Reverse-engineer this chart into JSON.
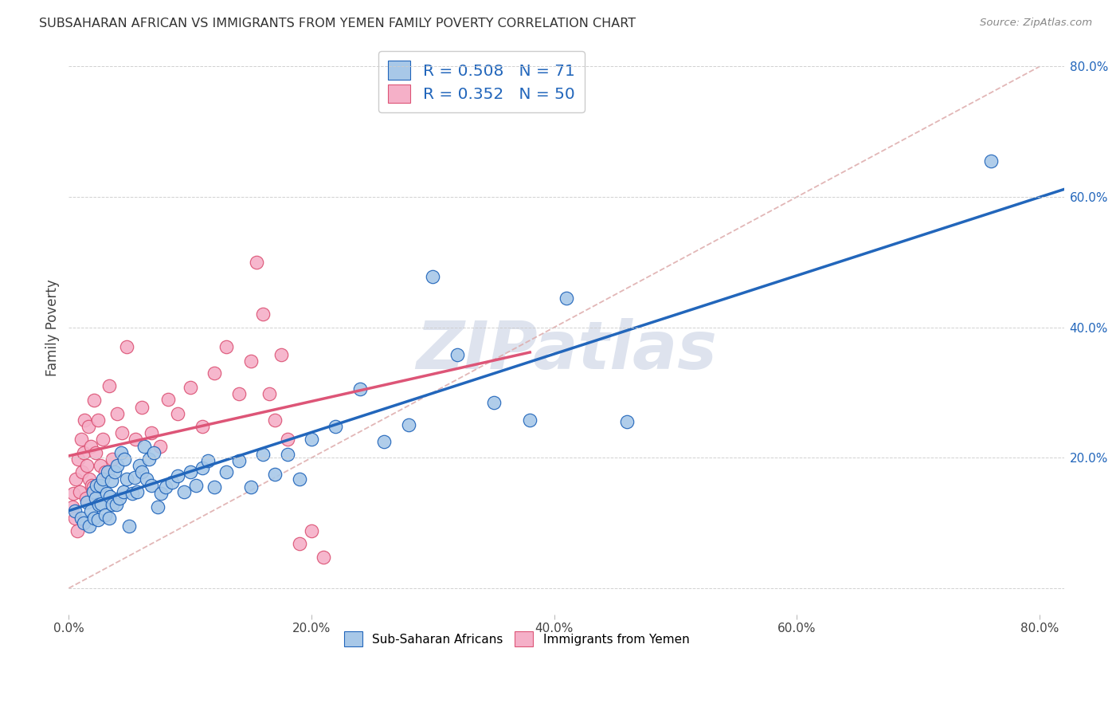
{
  "title": "SUBSAHARAN AFRICAN VS IMMIGRANTS FROM YEMEN FAMILY POVERTY CORRELATION CHART",
  "source": "Source: ZipAtlas.com",
  "ylabel": "Family Poverty",
  "xlim": [
    0.0,
    0.82
  ],
  "ylim": [
    -0.04,
    0.84
  ],
  "R1": 0.508,
  "N1": 71,
  "R2": 0.352,
  "N2": 50,
  "color1": "#a8c8e8",
  "color2": "#f5b0c8",
  "line1_color": "#2266bb",
  "line2_color": "#dd5577",
  "diag_color": "#ddaaaa",
  "legend1_label": "Sub-Saharan Africans",
  "legend2_label": "Immigrants from Yemen",
  "watermark": "ZIPatlas",
  "blue_x": [
    0.005,
    0.01,
    0.012,
    0.015,
    0.017,
    0.018,
    0.02,
    0.021,
    0.022,
    0.023,
    0.024,
    0.025,
    0.026,
    0.027,
    0.028,
    0.03,
    0.031,
    0.032,
    0.033,
    0.034,
    0.035,
    0.036,
    0.038,
    0.039,
    0.04,
    0.042,
    0.043,
    0.045,
    0.046,
    0.048,
    0.05,
    0.052,
    0.054,
    0.056,
    0.058,
    0.06,
    0.062,
    0.064,
    0.066,
    0.068,
    0.07,
    0.073,
    0.076,
    0.08,
    0.085,
    0.09,
    0.095,
    0.1,
    0.105,
    0.11,
    0.115,
    0.12,
    0.13,
    0.14,
    0.15,
    0.16,
    0.17,
    0.18,
    0.19,
    0.2,
    0.22,
    0.24,
    0.26,
    0.28,
    0.3,
    0.32,
    0.35,
    0.38,
    0.41,
    0.46,
    0.76
  ],
  "blue_y": [
    0.118,
    0.108,
    0.1,
    0.132,
    0.095,
    0.118,
    0.148,
    0.108,
    0.138,
    0.158,
    0.105,
    0.128,
    0.158,
    0.13,
    0.168,
    0.112,
    0.145,
    0.178,
    0.108,
    0.14,
    0.165,
    0.128,
    0.178,
    0.128,
    0.188,
    0.138,
    0.208,
    0.148,
    0.198,
    0.168,
    0.095,
    0.145,
    0.17,
    0.148,
    0.188,
    0.178,
    0.218,
    0.168,
    0.198,
    0.158,
    0.208,
    0.125,
    0.145,
    0.155,
    0.162,
    0.172,
    0.148,
    0.178,
    0.158,
    0.185,
    0.195,
    0.155,
    0.178,
    0.195,
    0.155,
    0.205,
    0.175,
    0.205,
    0.168,
    0.228,
    0.248,
    0.305,
    0.225,
    0.25,
    0.478,
    0.358,
    0.285,
    0.258,
    0.445,
    0.255,
    0.655
  ],
  "pink_x": [
    0.003,
    0.004,
    0.005,
    0.006,
    0.007,
    0.008,
    0.009,
    0.01,
    0.011,
    0.012,
    0.013,
    0.014,
    0.015,
    0.016,
    0.017,
    0.018,
    0.019,
    0.02,
    0.021,
    0.022,
    0.024,
    0.026,
    0.028,
    0.03,
    0.033,
    0.036,
    0.04,
    0.044,
    0.048,
    0.055,
    0.06,
    0.068,
    0.075,
    0.082,
    0.09,
    0.1,
    0.11,
    0.12,
    0.13,
    0.14,
    0.15,
    0.155,
    0.16,
    0.165,
    0.17,
    0.175,
    0.18,
    0.19,
    0.2,
    0.21
  ],
  "pink_y": [
    0.125,
    0.145,
    0.108,
    0.168,
    0.088,
    0.198,
    0.148,
    0.228,
    0.178,
    0.208,
    0.258,
    0.138,
    0.188,
    0.248,
    0.168,
    0.218,
    0.158,
    0.155,
    0.288,
    0.208,
    0.258,
    0.188,
    0.228,
    0.178,
    0.31,
    0.198,
    0.268,
    0.238,
    0.37,
    0.228,
    0.278,
    0.238,
    0.218,
    0.29,
    0.268,
    0.308,
    0.248,
    0.33,
    0.37,
    0.298,
    0.348,
    0.5,
    0.42,
    0.298,
    0.258,
    0.358,
    0.228,
    0.068,
    0.088,
    0.048
  ]
}
